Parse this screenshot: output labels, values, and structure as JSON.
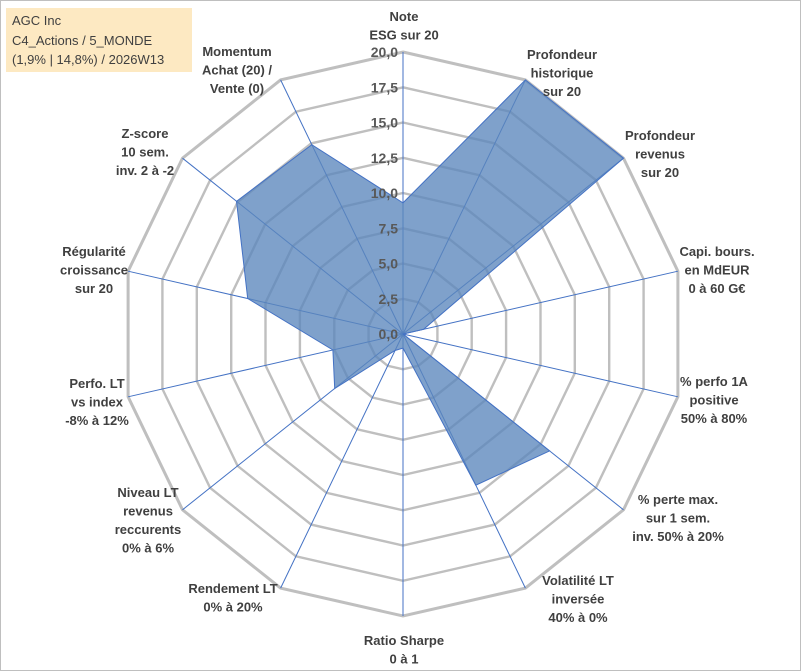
{
  "info": {
    "company": "AGC Inc",
    "category": "C4_Actions / 5_MONDE",
    "details": "(1,9% | 14,8%) / 2026W13"
  },
  "chart_data": {
    "type": "radar",
    "title": "",
    "range": [
      0,
      20
    ],
    "ticks": [
      "0,0",
      "2,5",
      "5,0",
      "7,5",
      "10,0",
      "12,5",
      "15,0",
      "17,5",
      "20,0"
    ],
    "axes": [
      [
        "Note",
        "ESG sur 20"
      ],
      [
        "Profondeur",
        "historique",
        "sur 20"
      ],
      [
        "Profondeur",
        "revenus",
        "sur 20"
      ],
      [
        "Capi. bours.",
        "en MdEUR",
        "0 à 60 G€"
      ],
      [
        "% perfo 1A",
        "positive",
        "50% à 80%"
      ],
      [
        "% perte max.",
        "sur 1 sem.",
        "inv. 50% à 20%"
      ],
      [
        "Volatilité LT",
        "inversée",
        "40% à 0%"
      ],
      [
        "Ratio Sharpe",
        "0 à 1"
      ],
      [
        "Rendement LT",
        "0% à 20%"
      ],
      [
        "Niveau LT",
        "revenus",
        "reccurents",
        "0% à 6%"
      ],
      [
        "Perfo. LT",
        "vs index",
        "-8% à 12%"
      ],
      [
        "Régularité",
        "croissance",
        "sur 20"
      ],
      [
        "Z-score",
        "10 sem.",
        "inv. 2 à -2"
      ],
      [
        "Momentum",
        "Achat (20) /",
        "Vente (0)"
      ]
    ],
    "series": [
      {
        "name": "AGC Inc",
        "values": [
          9.3,
          20.0,
          20.0,
          1.5,
          0.0,
          13.3,
          11.9,
          1.0,
          1.3,
          6.2,
          5.1,
          11.3,
          15.1,
          14.9
        ],
        "color": "#5b87bd",
        "opacity": 0.78,
        "stroke": "#4472c4"
      }
    ],
    "grid_color": "#bfbfbf",
    "axis_color": "#4472c4"
  }
}
